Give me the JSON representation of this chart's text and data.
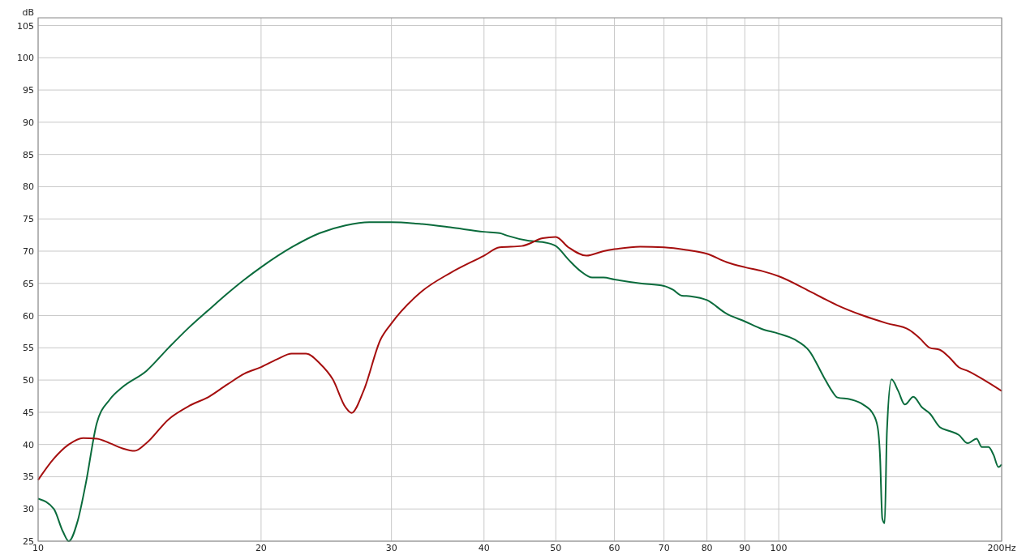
{
  "chart_data": {
    "type": "line",
    "ylabel": "dB",
    "log": "x",
    "grid": true,
    "marker": "none",
    "line_style": "solid",
    "xlim": [
      10,
      200
    ],
    "ylim": [
      25,
      106.2
    ],
    "xticks": [
      10,
      20,
      30,
      40,
      50,
      60,
      70,
      80,
      90,
      100,
      {
        "value": 200,
        "label": "200Hz"
      }
    ],
    "yticks": [
      25,
      30,
      35,
      40,
      45,
      50,
      55,
      60,
      65,
      70,
      75,
      80,
      85,
      90,
      95,
      100,
      105
    ],
    "series": [
      {
        "color": "#0a6b3c",
        "x": [
          10,
          10.5,
          10.8,
          11,
          11.3,
          11.6,
          12,
          12.5,
          13,
          14,
          15,
          16,
          17,
          18,
          19,
          20,
          22,
          24,
          26,
          28,
          30,
          33,
          36,
          40,
          42,
          43,
          46,
          48,
          50,
          52,
          54,
          56,
          58,
          60,
          65,
          70,
          72,
          74,
          76,
          80,
          85,
          90,
          95,
          100,
          105,
          110,
          115,
          118,
          120,
          125,
          130,
          134,
          136,
          137,
          138,
          139,
          140,
          142,
          145,
          148,
          152,
          156,
          160,
          165,
          170,
          175,
          180,
          185,
          188,
          192,
          195,
          198,
          200
        ],
        "values": [
          31.6,
          30,
          26.5,
          25,
          28,
          34,
          43.3,
          47,
          48.9,
          51.4,
          55,
          58.2,
          60.9,
          63.4,
          65.6,
          67.5,
          70.6,
          72.8,
          74,
          74.5,
          74.5,
          74.2,
          73.7,
          73,
          72.8,
          72.4,
          71.6,
          71.4,
          70.8,
          68.7,
          66.9,
          65.9,
          65.9,
          65.6,
          65,
          64.6,
          64,
          63.1,
          63,
          62.4,
          60.3,
          59.1,
          57.9,
          57.2,
          56.3,
          54.5,
          50.5,
          48.3,
          47.3,
          47,
          46.2,
          44.8,
          42.7,
          38.4,
          28.5,
          27.8,
          42.1,
          50.1,
          48.3,
          46.2,
          47.4,
          45.8,
          44.8,
          42.7,
          42.1,
          41.5,
          40.2,
          40.9,
          39.6,
          39.6,
          38.4,
          36.5,
          36.9
        ]
      },
      {
        "color": "#a50e0e",
        "x": [
          10,
          10.5,
          11,
          11.5,
          12,
          12.5,
          13,
          13.5,
          14,
          15,
          16,
          17,
          18,
          19,
          20,
          21,
          22,
          23,
          24,
          25,
          26,
          26.5,
          27.5,
          29,
          30,
          33,
          36,
          40,
          42,
          45,
          48,
          50,
          52,
          55,
          58,
          60,
          65,
          70,
          75,
          80,
          85,
          90,
          95,
          100,
          110,
          120,
          130,
          140,
          150,
          155,
          160,
          165,
          170,
          175,
          180,
          190,
          200
        ],
        "values": [
          34.5,
          37.8,
          40,
          41,
          40.9,
          40.2,
          39.4,
          39,
          40.2,
          43.9,
          46,
          47.4,
          49.3,
          51,
          52,
          53.2,
          54.1,
          54.1,
          52.6,
          50.1,
          45.8,
          44.9,
          48.3,
          56.3,
          58.8,
          63.8,
          66.6,
          69.3,
          70.6,
          70.8,
          72,
          72.2,
          70.6,
          69.3,
          70,
          70.3,
          70.7,
          70.6,
          70.2,
          69.6,
          68.3,
          67.5,
          66.9,
          66.1,
          63.8,
          61.6,
          60,
          58.8,
          57.8,
          56.5,
          55,
          54.7,
          53.5,
          52,
          51.4,
          49.9,
          48.3
        ]
      }
    ]
  }
}
